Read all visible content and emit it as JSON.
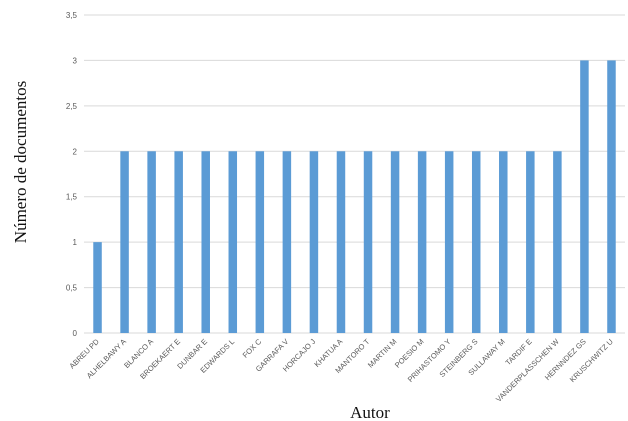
{
  "chart_data": {
    "type": "bar",
    "title": "",
    "xlabel": "Autor",
    "ylabel": "Número de documentos",
    "ylim": [
      0,
      3.5
    ],
    "yticks": [
      "0",
      "0,5",
      "1",
      "1,5",
      "2",
      "2,5",
      "3",
      "3,5"
    ],
    "grid": true,
    "legend": "none",
    "bar_color": "#5b9bd5",
    "categories": [
      "ABREU PD",
      "ALHELBAWY A",
      "BLANCO A",
      "BROEKAERT E",
      "DUNBAR E",
      "EDWARDS L",
      "FOX C",
      "GARRAFA V",
      "HORCAJO J",
      "KHATUA A",
      "MANTORO T",
      "MARTIN M",
      "POESIO M",
      "PRIHASTOMO Y",
      "STEINBERG S",
      "SULLAWAY M",
      "TARDIF E",
      "VANDERPLASSCHEN W",
      "HERNNDEZ GS",
      "KRUSCHWITZ U"
    ],
    "values": [
      1,
      2,
      2,
      2,
      2,
      2,
      2,
      2,
      2,
      2,
      2,
      2,
      2,
      2,
      2,
      2,
      2,
      2,
      3,
      3
    ]
  }
}
